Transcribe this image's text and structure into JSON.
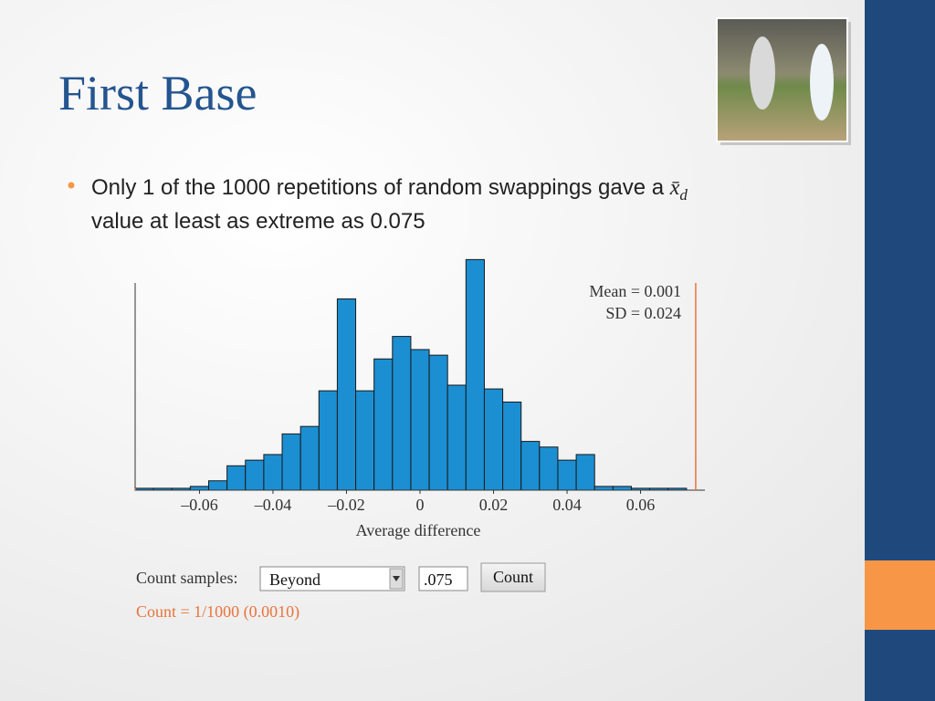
{
  "slide": {
    "title": "First Base",
    "bullet": {
      "text_before": "Only 1 of the 1000 repetitions of random swappings gave a ",
      "math_symbol": "x̄",
      "math_subscript": "d",
      "text_after": "value at least as extreme as 0.075"
    }
  },
  "chart_data": {
    "type": "histogram",
    "x_label": "Average difference",
    "annotations": [
      "Mean = 0.001",
      "SD = 0.024"
    ],
    "bins": [
      -0.0775,
      -0.0725,
      -0.0675,
      -0.0625,
      -0.0575,
      -0.0525,
      -0.0475,
      -0.0425,
      -0.0375,
      -0.0325,
      -0.0275,
      -0.0225,
      -0.0175,
      -0.0125,
      -0.0075,
      -0.0025,
      0.0025,
      0.0075,
      0.0125,
      0.0175,
      0.0225,
      0.0275,
      0.0325,
      0.0375,
      0.0425,
      0.0475,
      0.0525,
      0.0575,
      0.0625,
      0.0675,
      0.0725
    ],
    "counts": [
      1,
      1,
      1,
      2,
      5,
      13,
      16,
      19,
      30,
      34,
      53,
      102,
      53,
      70,
      82,
      75,
      72,
      56,
      123,
      54,
      47,
      26,
      23,
      16,
      19,
      2,
      2,
      1,
      1,
      1
    ],
    "color": "#1b8fd2",
    "xlim": [
      -0.0775,
      0.0775
    ],
    "ylim": [
      0,
      130
    ],
    "xticks": [
      {
        "value": -0.06,
        "label": "–0.06"
      },
      {
        "value": -0.04,
        "label": "–0.04"
      },
      {
        "value": -0.02,
        "label": "–0.02"
      },
      0,
      0.02,
      0.04,
      0.06
    ],
    "reference_lines": [
      -0.0775,
      0.075
    ],
    "reference_color": "#e8743b"
  },
  "controls": {
    "label": "Count samples:",
    "select": "Beyond",
    "input": ".075",
    "button": "Count",
    "result": "Count = 1/1000 (0.0010)"
  }
}
